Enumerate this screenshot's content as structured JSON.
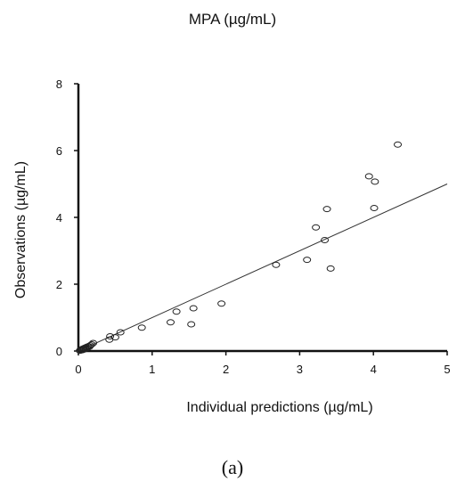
{
  "chart_data": {
    "type": "scatter",
    "title": "MPA (µg/mL)",
    "xlabel": "Individual predictions (µg/mL)",
    "ylabel": "Observations (µg/mL)",
    "xlim": [
      0,
      5
    ],
    "ylim": [
      0,
      8
    ],
    "xticks": [
      0,
      1,
      2,
      3,
      4,
      5
    ],
    "yticks": [
      0,
      2,
      4,
      6,
      8
    ],
    "grid": false,
    "marker": "open-circle",
    "reference_line": {
      "type": "identity",
      "slope": 1,
      "intercept": 0
    },
    "points": [
      {
        "x": 0.02,
        "y": 0.01
      },
      {
        "x": 0.03,
        "y": 0.04
      },
      {
        "x": 0.04,
        "y": 0.02
      },
      {
        "x": 0.05,
        "y": 0.06
      },
      {
        "x": 0.06,
        "y": 0.03
      },
      {
        "x": 0.07,
        "y": 0.08
      },
      {
        "x": 0.08,
        "y": 0.05
      },
      {
        "x": 0.09,
        "y": 0.1
      },
      {
        "x": 0.1,
        "y": 0.07
      },
      {
        "x": 0.11,
        "y": 0.12
      },
      {
        "x": 0.12,
        "y": 0.09
      },
      {
        "x": 0.13,
        "y": 0.14
      },
      {
        "x": 0.15,
        "y": 0.13
      },
      {
        "x": 0.16,
        "y": 0.17
      },
      {
        "x": 0.18,
        "y": 0.2
      },
      {
        "x": 0.2,
        "y": 0.24
      },
      {
        "x": 0.42,
        "y": 0.34
      },
      {
        "x": 0.43,
        "y": 0.44
      },
      {
        "x": 0.5,
        "y": 0.41
      },
      {
        "x": 0.57,
        "y": 0.56
      },
      {
        "x": 0.86,
        "y": 0.7
      },
      {
        "x": 1.25,
        "y": 0.86
      },
      {
        "x": 1.33,
        "y": 1.18
      },
      {
        "x": 1.53,
        "y": 0.8
      },
      {
        "x": 1.56,
        "y": 1.28
      },
      {
        "x": 1.94,
        "y": 1.42
      },
      {
        "x": 2.68,
        "y": 2.58
      },
      {
        "x": 3.1,
        "y": 2.73
      },
      {
        "x": 3.22,
        "y": 3.7
      },
      {
        "x": 3.34,
        "y": 3.32
      },
      {
        "x": 3.37,
        "y": 4.25
      },
      {
        "x": 3.42,
        "y": 2.47
      },
      {
        "x": 3.94,
        "y": 5.23
      },
      {
        "x": 4.01,
        "y": 4.28
      },
      {
        "x": 4.02,
        "y": 5.07
      },
      {
        "x": 4.33,
        "y": 6.18
      }
    ]
  },
  "panel_label": "(a)"
}
